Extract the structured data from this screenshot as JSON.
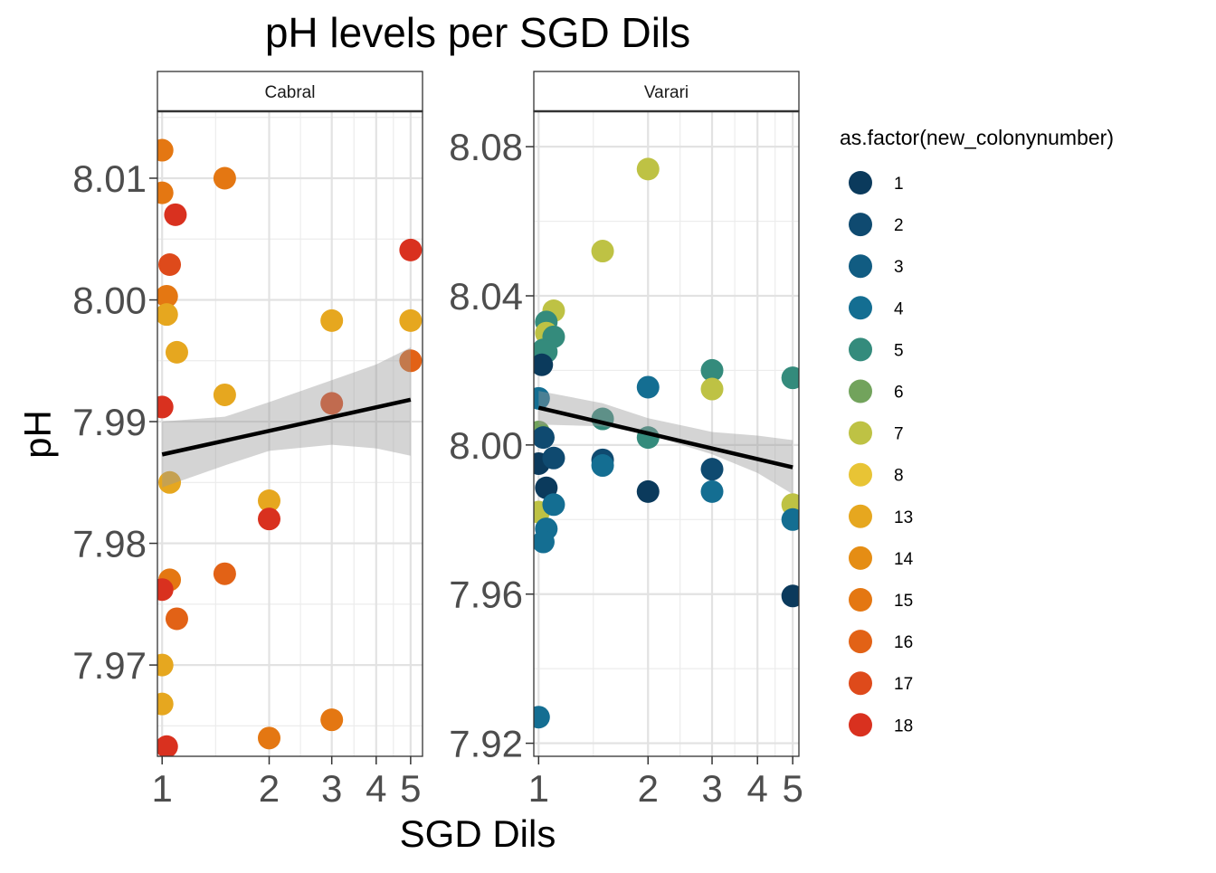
{
  "chart_data": {
    "type": "scatter",
    "title": "pH levels per SGD Dils",
    "xlabel": "SGD Dils",
    "ylabel": "pH",
    "x_scale": "log",
    "grid": true,
    "legend": {
      "title": "as.factor(new_colonynumber)",
      "position": "right",
      "entries": [
        {
          "label": "1",
          "color": "#0b3a5c"
        },
        {
          "label": "2",
          "color": "#0f4a70"
        },
        {
          "label": "3",
          "color": "#115c82"
        },
        {
          "label": "4",
          "color": "#146e92"
        },
        {
          "label": "5",
          "color": "#348b7c"
        },
        {
          "label": "6",
          "color": "#72a35c"
        },
        {
          "label": "7",
          "color": "#bec244"
        },
        {
          "label": "8",
          "color": "#e8c435"
        },
        {
          "label": "13",
          "color": "#e6a71f"
        },
        {
          "label": "14",
          "color": "#e58d14"
        },
        {
          "label": "15",
          "color": "#e47712"
        },
        {
          "label": "16",
          "color": "#e26216"
        },
        {
          "label": "17",
          "color": "#de4a1b"
        },
        {
          "label": "18",
          "color": "#d9311f"
        }
      ]
    },
    "panels": [
      {
        "strip": "Cabral",
        "xlim": [
          0.97,
          5.4
        ],
        "ylim": [
          7.9625,
          8.0155
        ],
        "x_ticks": [
          1,
          2,
          3,
          4,
          5
        ],
        "x_tick_labels": [
          "1",
          "2",
          "3",
          "4",
          "5"
        ],
        "y_ticks": [
          7.97,
          7.98,
          7.99,
          8.0,
          8.01
        ],
        "y_tick_labels": [
          "7.97",
          "7.98",
          "7.99",
          "8.00",
          "8.01"
        ],
        "trend": {
          "x": [
            1,
            5
          ],
          "y": [
            7.9873,
            7.9918
          ]
        },
        "band": {
          "x": [
            1,
            1.5,
            2,
            3,
            4,
            5
          ],
          "upper": [
            7.99,
            7.9904,
            7.9916,
            7.9934,
            7.9947,
            7.9961
          ],
          "lower": [
            7.9846,
            7.9864,
            7.9876,
            7.9881,
            7.9878,
            7.9872
          ]
        },
        "points": [
          {
            "x": 1.0,
            "y": 8.0123,
            "c": "15"
          },
          {
            "x": 1.0,
            "y": 8.0088,
            "c": "15"
          },
          {
            "x": 1.09,
            "y": 8.007,
            "c": "18"
          },
          {
            "x": 1.05,
            "y": 8.0029,
            "c": "17"
          },
          {
            "x": 1.03,
            "y": 8.0003,
            "c": "15"
          },
          {
            "x": 1.03,
            "y": 7.9988,
            "c": "13"
          },
          {
            "x": 1.1,
            "y": 7.9957,
            "c": "13"
          },
          {
            "x": 1.0,
            "y": 7.9912,
            "c": "18"
          },
          {
            "x": 1.05,
            "y": 7.985,
            "c": "13"
          },
          {
            "x": 1.05,
            "y": 7.977,
            "c": "15"
          },
          {
            "x": 1.0,
            "y": 7.9762,
            "c": "18"
          },
          {
            "x": 1.1,
            "y": 7.9738,
            "c": "16"
          },
          {
            "x": 1.0,
            "y": 7.97,
            "c": "13"
          },
          {
            "x": 1.0,
            "y": 7.9668,
            "c": "13"
          },
          {
            "x": 1.03,
            "y": 7.9633,
            "c": "18"
          },
          {
            "x": 1.5,
            "y": 8.01,
            "c": "15"
          },
          {
            "x": 1.5,
            "y": 7.9922,
            "c": "13"
          },
          {
            "x": 1.5,
            "y": 7.9775,
            "c": "16"
          },
          {
            "x": 2.0,
            "y": 7.9835,
            "c": "13"
          },
          {
            "x": 2.0,
            "y": 7.982,
            "c": "18"
          },
          {
            "x": 2.0,
            "y": 7.964,
            "c": "15"
          },
          {
            "x": 3.0,
            "y": 7.9983,
            "c": "13"
          },
          {
            "x": 3.0,
            "y": 7.9915,
            "c": "17"
          },
          {
            "x": 3.0,
            "y": 7.9655,
            "c": "15"
          },
          {
            "x": 5.0,
            "y": 8.0041,
            "c": "18"
          },
          {
            "x": 5.0,
            "y": 7.9983,
            "c": "13"
          },
          {
            "x": 5.0,
            "y": 7.995,
            "c": "16"
          }
        ]
      },
      {
        "strip": "Varari",
        "xlim": [
          0.97,
          5.2
        ],
        "ylim": [
          7.9165,
          8.0895
        ],
        "x_ticks": [
          1,
          2,
          3,
          4,
          5
        ],
        "x_tick_labels": [
          "1",
          "2",
          "3",
          "4",
          "5"
        ],
        "y_ticks": [
          7.92,
          7.96,
          8.0,
          8.04,
          8.08
        ],
        "y_tick_labels": [
          "7.92",
          "7.96",
          "8.00",
          "8.04",
          "8.08"
        ],
        "trend": {
          "x": [
            1,
            5
          ],
          "y": [
            8.01,
            7.994
          ]
        },
        "band": {
          "x": [
            1,
            1.5,
            2,
            3,
            4,
            5
          ],
          "upper": [
            8.0145,
            8.0112,
            8.0072,
            8.0035,
            8.0025,
            8.0013
          ],
          "lower": [
            8.0055,
            8.005,
            8.0028,
            7.9975,
            7.9925,
            7.9868
          ]
        },
        "points": [
          {
            "x": 2.0,
            "y": 8.074,
            "c": "7"
          },
          {
            "x": 1.5,
            "y": 8.052,
            "c": "7"
          },
          {
            "x": 1.1,
            "y": 8.036,
            "c": "7"
          },
          {
            "x": 1.05,
            "y": 8.033,
            "c": "5"
          },
          {
            "x": 1.05,
            "y": 8.03,
            "c": "7"
          },
          {
            "x": 1.1,
            "y": 8.029,
            "c": "5"
          },
          {
            "x": 1.03,
            "y": 8.0255,
            "c": "5"
          },
          {
            "x": 1.05,
            "y": 8.025,
            "c": "5"
          },
          {
            "x": 1.02,
            "y": 8.0215,
            "c": "1"
          },
          {
            "x": 1.0,
            "y": 8.0125,
            "c": "4"
          },
          {
            "x": 1.0,
            "y": 8.0035,
            "c": "6"
          },
          {
            "x": 1.03,
            "y": 8.002,
            "c": "2"
          },
          {
            "x": 1.0,
            "y": 7.995,
            "c": "1"
          },
          {
            "x": 1.1,
            "y": 7.9965,
            "c": "2"
          },
          {
            "x": 1.05,
            "y": 7.9885,
            "c": "1"
          },
          {
            "x": 1.0,
            "y": 7.982,
            "c": "7"
          },
          {
            "x": 1.1,
            "y": 7.984,
            "c": "4"
          },
          {
            "x": 1.05,
            "y": 7.9775,
            "c": "4"
          },
          {
            "x": 1.03,
            "y": 7.974,
            "c": "4"
          },
          {
            "x": 1.0,
            "y": 7.927,
            "c": "4"
          },
          {
            "x": 1.5,
            "y": 8.007,
            "c": "5"
          },
          {
            "x": 1.5,
            "y": 7.996,
            "c": "2"
          },
          {
            "x": 1.5,
            "y": 7.9945,
            "c": "4"
          },
          {
            "x": 2.0,
            "y": 8.0155,
            "c": "4"
          },
          {
            "x": 2.0,
            "y": 8.002,
            "c": "5"
          },
          {
            "x": 2.0,
            "y": 7.9875,
            "c": "1"
          },
          {
            "x": 3.0,
            "y": 8.02,
            "c": "5"
          },
          {
            "x": 3.0,
            "y": 8.015,
            "c": "7"
          },
          {
            "x": 3.0,
            "y": 7.9935,
            "c": "2"
          },
          {
            "x": 3.0,
            "y": 7.9875,
            "c": "4"
          },
          {
            "x": 5.0,
            "y": 8.018,
            "c": "5"
          },
          {
            "x": 5.0,
            "y": 7.984,
            "c": "7"
          },
          {
            "x": 5.0,
            "y": 7.98,
            "c": "4"
          },
          {
            "x": 5.0,
            "y": 7.9595,
            "c": "1"
          }
        ]
      }
    ]
  }
}
